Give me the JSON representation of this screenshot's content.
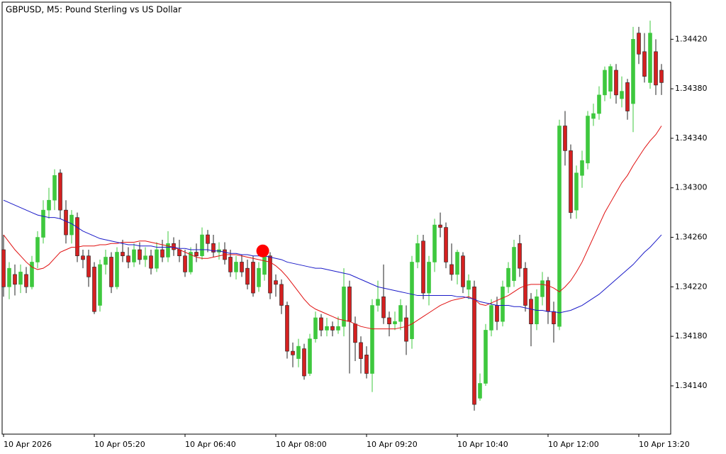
{
  "chart_data": {
    "type": "candlestick",
    "title": "GBPUSD, M5:  Pound Sterling vs US Dollar",
    "categories": [
      "10 Apr 2026",
      null,
      null,
      null,
      null,
      null,
      null,
      null,
      null,
      null,
      null,
      null,
      null,
      null,
      null,
      null,
      "10 Apr 05:20",
      null,
      null,
      null,
      null,
      null,
      null,
      null,
      null,
      null,
      null,
      null,
      null,
      null,
      null,
      null,
      "10 Apr 06:40",
      null,
      null,
      null,
      null,
      null,
      null,
      null,
      null,
      null,
      null,
      null,
      null,
      null,
      null,
      null,
      "10 Apr 08:00",
      null,
      null,
      null,
      null,
      null,
      null,
      null,
      null,
      null,
      null,
      null,
      null,
      null,
      null,
      null,
      "10 Apr 09:20",
      null,
      null,
      null,
      null,
      null,
      null,
      null,
      null,
      null,
      null,
      null,
      null,
      null,
      null,
      null,
      "10 Apr 10:40",
      null,
      null,
      null,
      null,
      null,
      null,
      null,
      null,
      null,
      null,
      null,
      null,
      null,
      null,
      null,
      "10 Apr 12:00",
      null,
      null,
      null,
      null,
      null,
      null,
      null,
      null,
      null,
      null,
      null,
      null,
      null,
      null,
      null,
      "10 Apr 13:20",
      null,
      null,
      null,
      null
    ],
    "open": [
      1.3425,
      1.3422,
      1.3423,
      1.34222,
      1.3423,
      1.3422,
      1.3424,
      1.3426,
      1.34282,
      1.3429,
      1.34312,
      1.34282,
      1.34262,
      1.34276,
      1.34245,
      1.34245,
      1.34236,
      1.34205,
      1.34238,
      1.34244,
      1.3422,
      1.34248,
      1.34245,
      1.3424,
      1.3425,
      1.34242,
      1.34245,
      1.34235,
      1.3425,
      1.34244,
      1.34255,
      1.3425,
      1.34245,
      1.34232,
      1.34248,
      1.34245,
      1.34262,
      1.34255,
      1.34248,
      1.3425,
      1.34244,
      1.34232,
      1.3424,
      1.34235,
      1.3424,
      1.3422,
      1.3423,
      1.34245,
      1.34225,
      1.34222,
      1.34205,
      1.34168,
      1.34162,
      1.3417,
      1.3415,
      1.34178,
      1.34195,
      1.34185,
      1.34188,
      1.34185,
      1.34188,
      1.3422,
      1.3419,
      1.34175,
      1.34165,
      1.3415,
      1.34205,
      1.34212,
      1.34195,
      1.3419,
      1.34192,
      1.34195,
      1.34178,
      1.3424,
      1.34257,
      1.34215,
      1.3424,
      1.3427,
      1.34268,
      1.34238,
      1.3423,
      1.34245,
      1.34218,
      1.3422,
      1.3413,
      1.34142,
      1.34185,
      1.34205,
      1.34192,
      1.3422,
      1.34225,
      1.34255,
      1.34235,
      1.3421,
      1.3419,
      1.34212,
      1.34225,
      1.342,
      1.34188,
      1.3435,
      1.3433,
      1.34282,
      1.3431,
      1.3432,
      1.34356,
      1.3436,
      1.34375,
      1.34378,
      1.34395,
      1.34372,
      1.34385,
      1.34368,
      1.34425,
      1.3441,
      1.34385,
      1.3441,
      1.34395
    ],
    "high": [
      1.34262,
      1.3424,
      1.34238,
      1.34238,
      1.34236,
      1.34245,
      1.34265,
      1.3429,
      1.343,
      1.34315,
      1.34315,
      1.3429,
      1.34282,
      1.3428,
      1.3425,
      1.3425,
      1.3424,
      1.34242,
      1.3425,
      1.34248,
      1.34252,
      1.34258,
      1.34252,
      1.34255,
      1.34256,
      1.34252,
      1.3425,
      1.34256,
      1.34258,
      1.34265,
      1.3426,
      1.34258,
      1.3425,
      1.34252,
      1.34255,
      1.34268,
      1.34266,
      1.34262,
      1.34256,
      1.34256,
      1.3425,
      1.34245,
      1.34246,
      1.34242,
      1.34245,
      1.3424,
      1.3425,
      1.34248,
      1.3423,
      1.34226,
      1.34208,
      1.34175,
      1.34178,
      1.34174,
      1.34182,
      1.342,
      1.34198,
      1.34195,
      1.34192,
      1.34196,
      1.34235,
      1.34225,
      1.34196,
      1.3418,
      1.34172,
      1.3421,
      1.34225,
      1.34238,
      1.342,
      1.342,
      1.3421,
      1.34205,
      1.34245,
      1.34262,
      1.34262,
      1.34245,
      1.34275,
      1.3428,
      1.34272,
      1.34255,
      1.3425,
      1.34248,
      1.3423,
      1.34225,
      1.3415,
      1.3419,
      1.3421,
      1.34212,
      1.34225,
      1.3424,
      1.34258,
      1.34262,
      1.3424,
      1.34215,
      1.34218,
      1.34232,
      1.34228,
      1.34208,
      1.34355,
      1.34362,
      1.34335,
      1.34318,
      1.3433,
      1.34362,
      1.34368,
      1.34382,
      1.34398,
      1.344,
      1.344,
      1.3439,
      1.34388,
      1.3443,
      1.3443,
      1.34425,
      1.34435,
      1.3442,
      1.344
    ],
    "low": [
      1.34212,
      1.3421,
      1.34213,
      1.34215,
      1.34215,
      1.34218,
      1.34235,
      1.34255,
      1.34275,
      1.34282,
      1.34275,
      1.34255,
      1.34255,
      1.3424,
      1.34235,
      1.3422,
      1.34198,
      1.342,
      1.3423,
      1.34215,
      1.34218,
      1.3424,
      1.34235,
      1.34236,
      1.34238,
      1.34236,
      1.3423,
      1.34232,
      1.3424,
      1.3424,
      1.34245,
      1.3424,
      1.34228,
      1.3423,
      1.3424,
      1.34242,
      1.34248,
      1.34244,
      1.34242,
      1.34238,
      1.34228,
      1.34226,
      1.34228,
      1.34218,
      1.34212,
      1.34216,
      1.34225,
      1.3421,
      1.34212,
      1.34198,
      1.34162,
      1.34155,
      1.34155,
      1.34145,
      1.34148,
      1.34175,
      1.3418,
      1.3418,
      1.3418,
      1.34182,
      1.3418,
      1.3415,
      1.3416,
      1.3415,
      1.34146,
      1.34135,
      1.342,
      1.3419,
      1.3418,
      1.34185,
      1.34185,
      1.34165,
      1.3417,
      1.34235,
      1.3421,
      1.34205,
      1.34232,
      1.3426,
      1.34235,
      1.34225,
      1.34222,
      1.34215,
      1.3421,
      1.3412,
      1.34128,
      1.3414,
      1.3418,
      1.34185,
      1.34188,
      1.34215,
      1.3422,
      1.34228,
      1.342,
      1.34172,
      1.34185,
      1.34205,
      1.3419,
      1.34175,
      1.34185,
      1.34318,
      1.34275,
      1.34275,
      1.343,
      1.34315,
      1.3435,
      1.34355,
      1.3437,
      1.34372,
      1.34368,
      1.34365,
      1.34355,
      1.34345,
      1.344,
      1.34385,
      1.3438,
      1.34375,
      1.34375
    ],
    "close": [
      1.3422,
      1.34235,
      1.34222,
      1.34232,
      1.3422,
      1.3424,
      1.3426,
      1.34282,
      1.3429,
      1.3431,
      1.34282,
      1.34262,
      1.34278,
      1.34245,
      1.34242,
      1.34228,
      1.342,
      1.34238,
      1.34244,
      1.3422,
      1.34248,
      1.34245,
      1.3424,
      1.3425,
      1.34242,
      1.34245,
      1.34235,
      1.3425,
      1.34244,
      1.34255,
      1.3425,
      1.34245,
      1.34232,
      1.34248,
      1.34245,
      1.34262,
      1.34255,
      1.34248,
      1.3425,
      1.34242,
      1.34232,
      1.3424,
      1.34232,
      1.34222,
      1.34215,
      1.34235,
      1.34245,
      1.34215,
      1.34222,
      1.34205,
      1.34168,
      1.34165,
      1.34172,
      1.34148,
      1.34178,
      1.34195,
      1.34185,
      1.34188,
      1.34185,
      1.34188,
      1.3422,
      1.34192,
      1.34175,
      1.34162,
      1.3415,
      1.34205,
      1.3421,
      1.34195,
      1.3419,
      1.34192,
      1.34205,
      1.34176,
      1.3424,
      1.34255,
      1.34215,
      1.3424,
      1.3427,
      1.34268,
      1.3424,
      1.3423,
      1.34248,
      1.3422,
      1.34225,
      1.34125,
      1.34142,
      1.34185,
      1.34205,
      1.34192,
      1.3422,
      1.34235,
      1.34252,
      1.34235,
      1.34205,
      1.3419,
      1.34212,
      1.34225,
      1.342,
      1.3419,
      1.3435,
      1.3433,
      1.3428,
      1.34312,
      1.34322,
      1.34358,
      1.3436,
      1.34375,
      1.34395,
      1.34398,
      1.34375,
      1.34378,
      1.34362,
      1.3442,
      1.34408,
      1.3439,
      1.34425,
      1.34383,
      1.34385
    ],
    "up_color": "#3ec83e",
    "down_color": "#d42020",
    "lines": [
      {
        "color": "#e01010",
        "values": [
          1.34262,
          1.34256,
          1.3425,
          1.34245,
          1.3424,
          1.34236,
          1.34234,
          1.34235,
          1.34238,
          1.34243,
          1.34248,
          1.3425,
          1.34252,
          1.34252,
          1.34253,
          1.34253,
          1.34253,
          1.34254,
          1.34254,
          1.34255,
          1.34255,
          1.34256,
          1.34256,
          1.34256,
          1.34257,
          1.34257,
          1.34256,
          1.34255,
          1.34254,
          1.34253,
          1.34252,
          1.3425,
          1.34248,
          1.34246,
          1.34244,
          1.34243,
          1.34243,
          1.34244,
          1.34245,
          1.34246,
          1.34246,
          1.34246,
          1.34245,
          1.34244,
          1.34243,
          1.34242,
          1.34241,
          1.3424,
          1.34237,
          1.34233,
          1.34228,
          1.34222,
          1.34216,
          1.3421,
          1.34205,
          1.34202,
          1.342,
          1.34198,
          1.34196,
          1.34194,
          1.34193,
          1.34192,
          1.3419,
          1.34188,
          1.34187,
          1.34186,
          1.34186,
          1.34186,
          1.34186,
          1.34186,
          1.34187,
          1.34188,
          1.3419,
          1.34193,
          1.34196,
          1.34199,
          1.34202,
          1.34205,
          1.34207,
          1.34209,
          1.3421,
          1.34211,
          1.34212,
          1.3421,
          1.34206,
          1.34205,
          1.34207,
          1.34209,
          1.34211,
          1.34213,
          1.34216,
          1.34219,
          1.34221,
          1.34222,
          1.34222,
          1.34222,
          1.34221,
          1.34219,
          1.34216,
          1.3422,
          1.34225,
          1.34232,
          1.3424,
          1.3425,
          1.3426,
          1.3427,
          1.3428,
          1.34288,
          1.34296,
          1.34304,
          1.3431,
          1.34318,
          1.34325,
          1.34332,
          1.34338,
          1.34343,
          1.3435
        ]
      },
      {
        "color": "#1a1ac8",
        "values": [
          1.3429,
          1.34288,
          1.34286,
          1.34284,
          1.34282,
          1.3428,
          1.34278,
          1.34277,
          1.34276,
          1.34276,
          1.34275,
          1.34273,
          1.34271,
          1.34268,
          1.34265,
          1.34263,
          1.34261,
          1.34259,
          1.34258,
          1.34257,
          1.34256,
          1.34255,
          1.34254,
          1.34254,
          1.34253,
          1.34253,
          1.34253,
          1.34252,
          1.34252,
          1.34252,
          1.34252,
          1.34251,
          1.34251,
          1.3425,
          1.3425,
          1.3425,
          1.3425,
          1.34249,
          1.34249,
          1.34248,
          1.34247,
          1.34247,
          1.34246,
          1.34246,
          1.34245,
          1.34245,
          1.34245,
          1.34244,
          1.34243,
          1.34242,
          1.3424,
          1.34239,
          1.34238,
          1.34237,
          1.34236,
          1.34235,
          1.34235,
          1.34234,
          1.34233,
          1.34232,
          1.34231,
          1.3423,
          1.34228,
          1.34226,
          1.34224,
          1.34222,
          1.3422,
          1.34219,
          1.34218,
          1.34217,
          1.34216,
          1.34215,
          1.34214,
          1.34213,
          1.34213,
          1.34213,
          1.34213,
          1.34213,
          1.34213,
          1.34213,
          1.34212,
          1.34212,
          1.34211,
          1.3421,
          1.34208,
          1.34207,
          1.34206,
          1.34205,
          1.34205,
          1.34205,
          1.34204,
          1.34204,
          1.34203,
          1.34202,
          1.34201,
          1.34201,
          1.342,
          1.342,
          1.34199,
          1.342,
          1.34201,
          1.34203,
          1.34205,
          1.34208,
          1.34211,
          1.34214,
          1.34218,
          1.34222,
          1.34226,
          1.3423,
          1.34234,
          1.34238,
          1.34243,
          1.34248,
          1.34252,
          1.34257,
          1.34262
        ]
      }
    ],
    "marker": {
      "x_index": 45.7,
      "value": 1.34249,
      "color": "#ff0000"
    },
    "ylim": [
      1.34101,
      1.3445
    ],
    "yticks": [
      {
        "value": 1.3414,
        "label": "1.34140"
      },
      {
        "value": 1.3418,
        "label": "1.34180"
      },
      {
        "value": 1.3422,
        "label": "1.34220"
      },
      {
        "value": 1.3426,
        "label": "1.34260"
      },
      {
        "value": 1.343,
        "label": "1.34300"
      },
      {
        "value": 1.3434,
        "label": "1.34340"
      },
      {
        "value": 1.3438,
        "label": "1.34380"
      },
      {
        "value": 1.3442,
        "label": "1.34420"
      }
    ]
  }
}
